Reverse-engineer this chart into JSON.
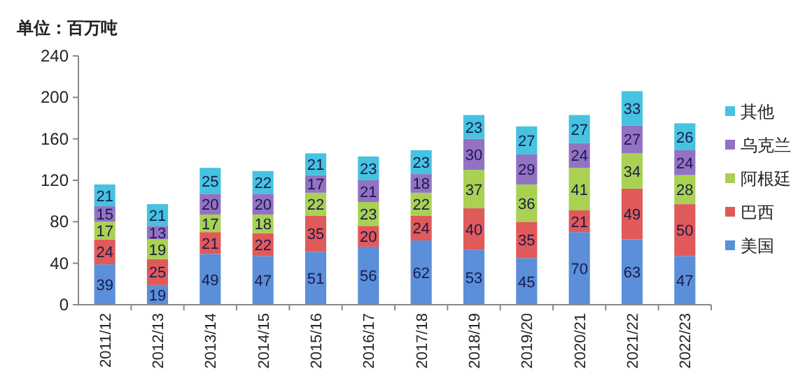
{
  "chart_data": {
    "type": "bar",
    "title": "单位：百万吨",
    "stacked": true,
    "data_labels": true,
    "legend": "right",
    "grid": false,
    "categories": [
      "2011/12",
      "2012/13",
      "2013/14",
      "2014/15",
      "2015/16",
      "2016/17",
      "2017/18",
      "2018/19",
      "2019/20",
      "2020/21",
      "2021/22",
      "2022/23"
    ],
    "ylim": [
      0,
      240
    ],
    "yticks": [
      0,
      40,
      80,
      120,
      160,
      200,
      240
    ],
    "series": [
      {
        "name": "美国",
        "color": "#5b8fd9",
        "values": [
          39,
          19,
          49,
          47,
          51,
          56,
          62,
          53,
          45,
          70,
          63,
          47
        ]
      },
      {
        "name": "巴西",
        "color": "#e05a5a",
        "values": [
          24,
          25,
          21,
          22,
          35,
          20,
          24,
          40,
          35,
          21,
          49,
          50
        ]
      },
      {
        "name": "阿根廷",
        "color": "#a9d152",
        "values": [
          17,
          19,
          17,
          18,
          22,
          23,
          22,
          37,
          36,
          41,
          34,
          28
        ]
      },
      {
        "name": "乌克兰",
        "color": "#9372c4",
        "values": [
          15,
          13,
          20,
          20,
          17,
          21,
          18,
          30,
          29,
          24,
          27,
          24
        ]
      },
      {
        "name": "其他",
        "color": "#45c3e0",
        "values": [
          21,
          21,
          25,
          22,
          21,
          23,
          23,
          23,
          27,
          27,
          33,
          26
        ]
      }
    ]
  }
}
